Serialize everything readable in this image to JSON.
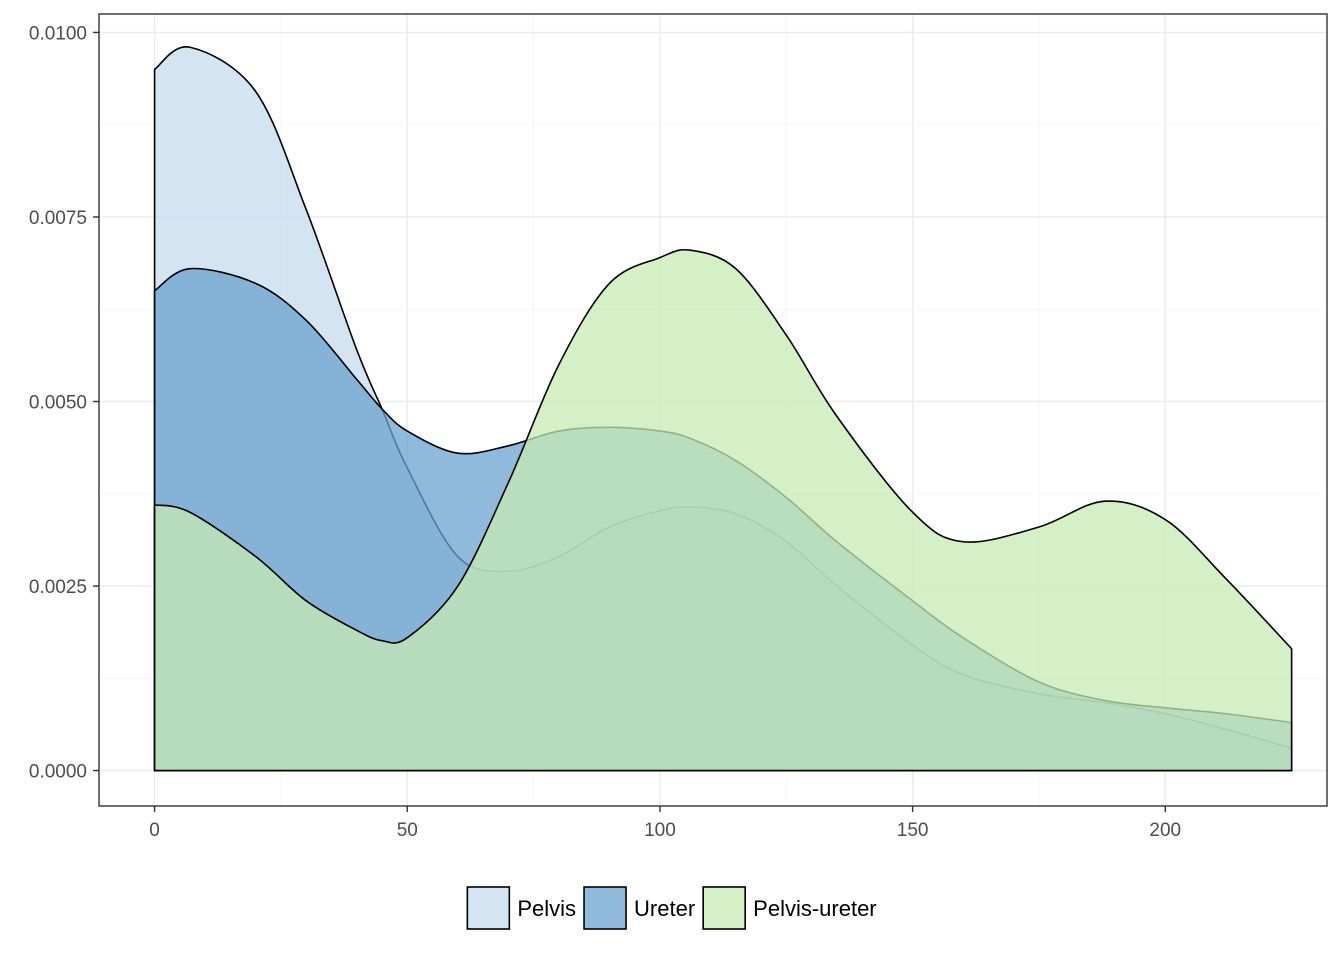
{
  "chart_data": {
    "type": "area",
    "title": "",
    "xlabel": "",
    "ylabel": "",
    "xlim": [
      -11,
      232
    ],
    "ylim": [
      -0.00048,
      0.01025
    ],
    "x_ticks": [
      0,
      50,
      100,
      150,
      200
    ],
    "x_tick_labels": [
      "0",
      "50",
      "100",
      "150",
      "200"
    ],
    "y_ticks": [
      0,
      0.0025,
      0.005,
      0.0075,
      0.01
    ],
    "y_tick_labels": [
      "0.0000",
      "0.0025",
      "0.0050",
      "0.0075",
      "0.0100"
    ],
    "grid": true,
    "legend_position": "bottom",
    "x": [
      0,
      7,
      20,
      30,
      40,
      45,
      50,
      60,
      70,
      80,
      90,
      100,
      106,
      115,
      125,
      135,
      150,
      160,
      175,
      188,
      200,
      212,
      225
    ],
    "series": [
      {
        "name": "Pelvis",
        "color": "#c6dbef",
        "values": [
          0.0095,
          0.0098,
          0.0092,
          0.0076,
          0.0057,
          0.0049,
          0.0041,
          0.0029,
          0.0027,
          0.0029,
          0.0033,
          0.00352,
          0.00357,
          0.00348,
          0.0031,
          0.0025,
          0.0017,
          0.0013,
          0.00104,
          0.00092,
          0.00077,
          0.00056,
          0.0003
        ]
      },
      {
        "name": "Ureter",
        "color": "#6ba3cf",
        "values": [
          0.0065,
          0.0068,
          0.0066,
          0.0061,
          0.0053,
          0.0049,
          0.0046,
          0.0043,
          0.0044,
          0.0046,
          0.00465,
          0.0046,
          0.0045,
          0.0042,
          0.0037,
          0.0031,
          0.0023,
          0.0018,
          0.0012,
          0.00095,
          0.00085,
          0.00077,
          0.00065
        ]
      },
      {
        "name": "Pelvis-ureter",
        "color": "#c7e9b4",
        "values": [
          0.0036,
          0.0035,
          0.0029,
          0.0023,
          0.0019,
          0.00176,
          0.0018,
          0.0025,
          0.0039,
          0.0055,
          0.0066,
          0.00695,
          0.00705,
          0.0068,
          0.0059,
          0.0048,
          0.0035,
          0.0031,
          0.0033,
          0.00365,
          0.0034,
          0.0026,
          0.00165
        ]
      }
    ]
  }
}
